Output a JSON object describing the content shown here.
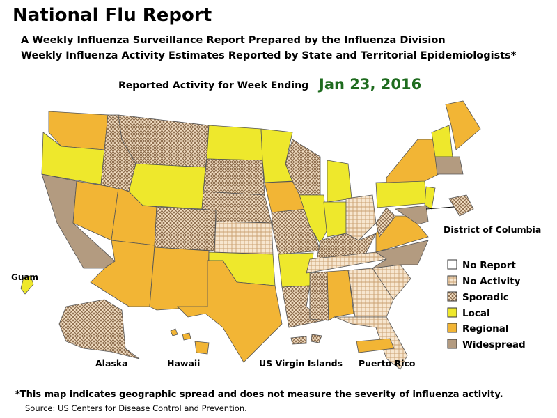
{
  "header": {
    "title": "National Flu Report",
    "subtitle_lines": [
      "A Weekly Influenza Surveillance Report Prepared by the Influenza Division",
      "Weekly Influenza Activity Estimates Reported by State and Territorial Epidemiologists*"
    ],
    "week_label": "Reported Activity for Week Ending",
    "week_date": "Jan 23, 2016"
  },
  "legend": [
    "No Report",
    "No Activity",
    "Sporadic",
    "Local",
    "Regional",
    "Widespread"
  ],
  "region_labels": {
    "dc": "District of Columbia",
    "guam": "Guam",
    "alaska": "Alaska",
    "hawaii": "Hawaii",
    "usvi": "US Virgin Islands",
    "puerto_rico": "Puerto Rico"
  },
  "footer": {
    "footnote": "*This map indicates geographic spread and does not measure the severity of influenza activity.",
    "source": "Source:  US Centers for Disease Control and Prevention."
  }
}
